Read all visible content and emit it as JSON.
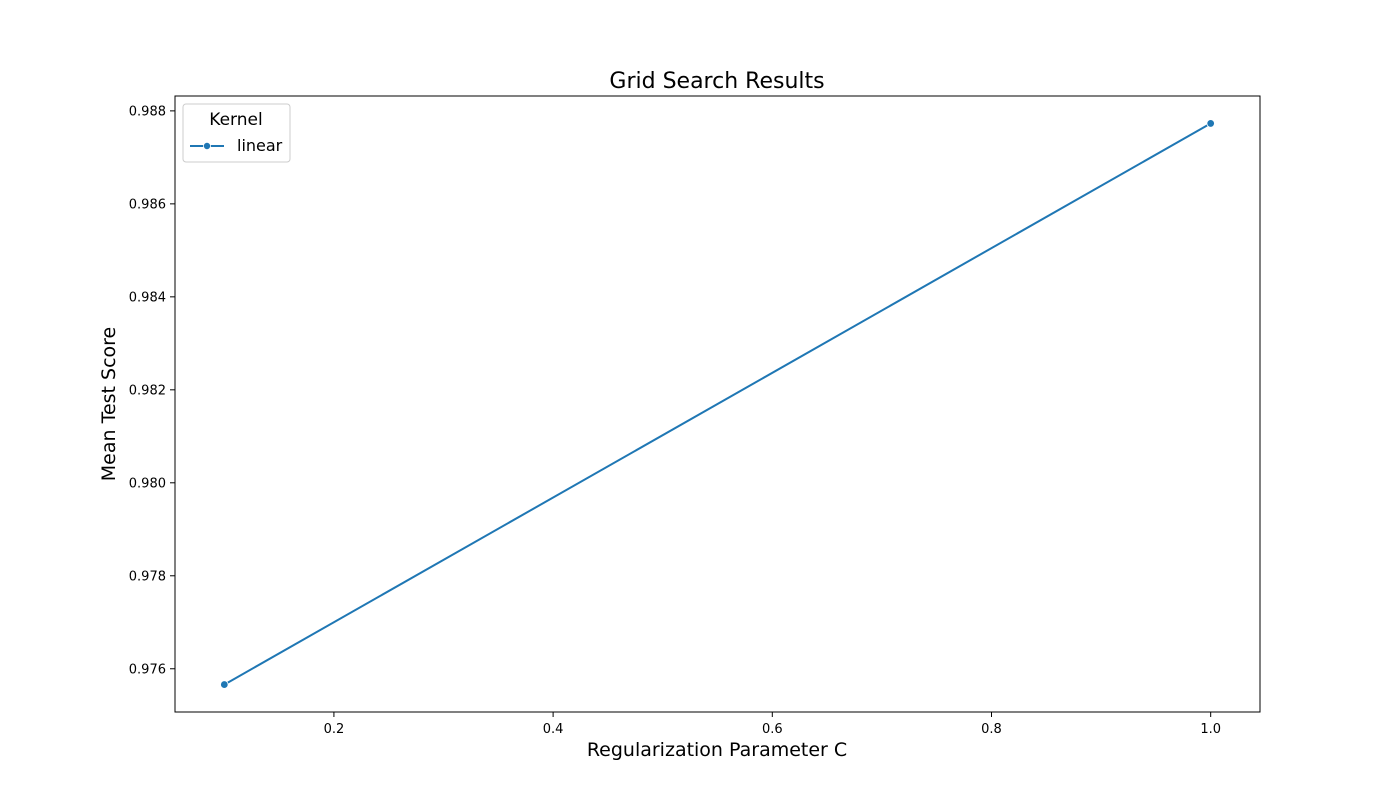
{
  "chart_data": {
    "type": "line",
    "title": "Grid Search Results",
    "xlabel": "Regularization Parameter C",
    "ylabel": "Mean Test Score",
    "xlim": [
      0.055,
      1.045
    ],
    "ylim": [
      0.97507,
      0.98832
    ],
    "xticks": [
      0.2,
      0.4,
      0.6,
      0.8,
      1.0
    ],
    "xtick_labels": [
      "0.2",
      "0.4",
      "0.6",
      "0.8",
      "1.0"
    ],
    "yticks": [
      0.976,
      0.978,
      0.98,
      0.982,
      0.984,
      0.986,
      0.988
    ],
    "ytick_labels": [
      "0.976",
      "0.978",
      "0.980",
      "0.982",
      "0.984",
      "0.986",
      "0.988"
    ],
    "grid": false,
    "legend": {
      "title": "Kernel",
      "position": "top-left"
    },
    "series": [
      {
        "name": "linear",
        "color": "#1f77b4",
        "marker": "circle",
        "x": [
          0.1,
          1.0
        ],
        "y": [
          0.97566,
          0.98773
        ]
      }
    ]
  }
}
